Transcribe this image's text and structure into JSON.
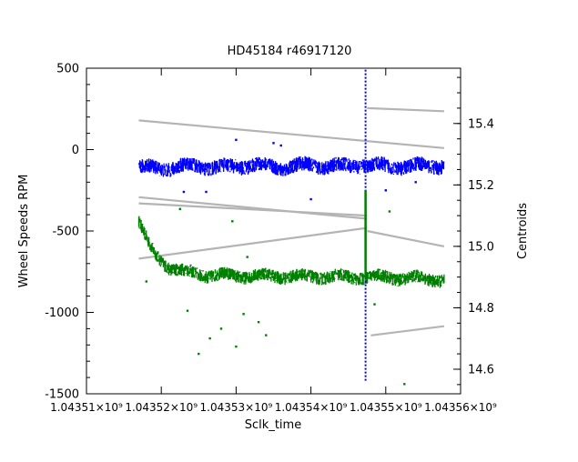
{
  "chart_data": {
    "type": "scatter",
    "title": "HD45184 r46917120",
    "xlabel": "Sclk_time",
    "ylabel": "Wheel Speeds RPM",
    "y2label": "Centroids",
    "xlim": [
      1043510000,
      1043560000
    ],
    "ylim": [
      -1500,
      500
    ],
    "y2lim": [
      14.52,
      15.58
    ],
    "x_ticks": [
      {
        "value": 1043510000,
        "label": "1.04351×10⁹"
      },
      {
        "value": 1043520000,
        "label": "1.04352×10⁹"
      },
      {
        "value": 1043530000,
        "label": "1.04353×10⁹"
      },
      {
        "value": 1043540000,
        "label": "1.04354×10⁹"
      },
      {
        "value": 1043550000,
        "label": "1.04355×10⁹"
      },
      {
        "value": 1043560000,
        "label": "1.04356×10⁹"
      }
    ],
    "y_ticks": [
      {
        "value": 500,
        "label": "500"
      },
      {
        "value": 0,
        "label": "0"
      },
      {
        "value": -500,
        "label": "-500"
      },
      {
        "value": -1000,
        "label": "-1000"
      },
      {
        "value": -1500,
        "label": "-1500"
      }
    ],
    "y2_ticks": [
      {
        "value": 15.4,
        "label": "15.4"
      },
      {
        "value": 15.2,
        "label": "15.2"
      },
      {
        "value": 15.0,
        "label": "15.0"
      },
      {
        "value": 14.8,
        "label": "14.8"
      },
      {
        "value": 14.6,
        "label": "14.6"
      }
    ],
    "grid": false,
    "series": [
      {
        "axis": "left",
        "color": "#0000ff",
        "x": [
          1043517000,
          1043520000,
          1043524000,
          1043528000,
          1043532000,
          1043536000,
          1043540000,
          1043544000,
          1043547000,
          1043547500,
          1043550000,
          1043553000,
          1043556000,
          1043557800
        ],
        "y": [
          -110,
          -115,
          -100,
          -110,
          -95,
          -110,
          -95,
          -105,
          -90,
          -100,
          -100,
          -105,
          -95,
          -100
        ],
        "spread": 45
      },
      {
        "axis": "left",
        "color": "#008000",
        "x": [
          1043517000,
          1043517700,
          1043518500,
          1043519500,
          1043521000,
          1043523000,
          1043526000,
          1043530000,
          1043534000,
          1043538000,
          1043542000,
          1043546000,
          1043547500,
          1043550000,
          1043554000,
          1043557800
        ],
        "y": [
          -440,
          -520,
          -600,
          -660,
          -720,
          -750,
          -770,
          -775,
          -775,
          -780,
          -780,
          -785,
          -780,
          -785,
          -790,
          -800
        ],
        "spread": 40
      },
      {
        "axis": "right",
        "color": "#b4b4b4",
        "x": [
          1043517000,
          1043557800
        ],
        "y": [
          15.41,
          15.32
        ]
      },
      {
        "axis": "right",
        "color": "#b4b4b4",
        "x": [
          1043547500,
          1043557800
        ],
        "y": [
          15.45,
          15.44
        ]
      },
      {
        "axis": "right",
        "color": "#b4b4b4",
        "x": [
          1043517000,
          1043547500
        ],
        "y": [
          15.16,
          15.09
        ]
      },
      {
        "axis": "right",
        "color": "#b4b4b4",
        "x": [
          1043517000,
          1043547500
        ],
        "y": [
          15.14,
          15.1
        ]
      },
      {
        "axis": "right",
        "color": "#b4b4b4",
        "x": [
          1043517000,
          1043547500
        ],
        "y": [
          14.96,
          15.06
        ]
      },
      {
        "axis": "right",
        "color": "#b4b4b4",
        "x": [
          1043547500,
          1043557800
        ],
        "y": [
          15.05,
          15.0
        ]
      },
      {
        "axis": "right",
        "color": "#b4b4b4",
        "x": [
          1043548000,
          1043557800
        ],
        "y": [
          14.71,
          14.74
        ]
      }
    ],
    "spike": {
      "x": 1043547300,
      "blue_y_range": [
        -1420,
        500
      ],
      "green_y_range": [
        -800,
        -250
      ]
    },
    "outliers": [
      {
        "color": "#0000ff",
        "x": 1043530000,
        "y": 60
      },
      {
        "color": "#0000ff",
        "x": 1043535000,
        "y": 40
      },
      {
        "color": "#0000ff",
        "x": 1043536000,
        "y": 25
      },
      {
        "color": "#0000ff",
        "x": 1043523000,
        "y": -260
      },
      {
        "color": "#0000ff",
        "x": 1043540000,
        "y": -305
      },
      {
        "color": "#0000ff",
        "x": 1043526000,
        "y": -260
      },
      {
        "color": "#0000ff",
        "x": 1043550000,
        "y": -250
      },
      {
        "color": "#0000ff",
        "x": 1043554000,
        "y": -200
      },
      {
        "color": "#008000",
        "x": 1043518000,
        "y": -810
      },
      {
        "color": "#008000",
        "x": 1043525000,
        "y": -1255
      },
      {
        "color": "#008000",
        "x": 1043526500,
        "y": -1160
      },
      {
        "color": "#008000",
        "x": 1043528000,
        "y": -1100
      },
      {
        "color": "#008000",
        "x": 1043530000,
        "y": -1210
      },
      {
        "color": "#008000",
        "x": 1043531000,
        "y": -1010
      },
      {
        "color": "#008000",
        "x": 1043533000,
        "y": -1060
      },
      {
        "color": "#008000",
        "x": 1043534000,
        "y": -1140
      },
      {
        "color": "#008000",
        "x": 1043523500,
        "y": -990
      },
      {
        "color": "#008000",
        "x": 1043531500,
        "y": -660
      },
      {
        "color": "#008000",
        "x": 1043529500,
        "y": -440
      },
      {
        "color": "#008000",
        "x": 1043522500,
        "y": -365
      },
      {
        "color": "#008000",
        "x": 1043550500,
        "y": -380
      },
      {
        "color": "#008000",
        "x": 1043552500,
        "y": -1440
      },
      {
        "color": "#008000",
        "x": 1043548500,
        "y": -950
      }
    ]
  }
}
